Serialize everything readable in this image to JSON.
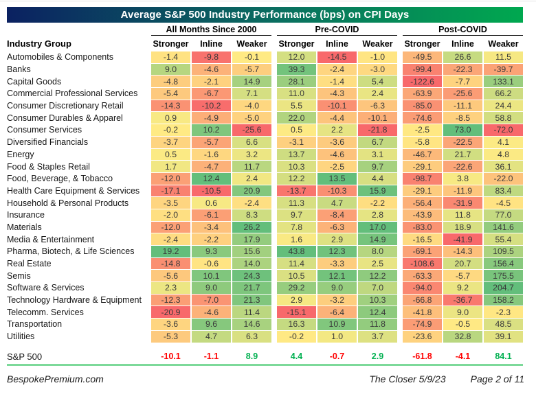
{
  "chart_data": {
    "type": "heatmap",
    "title": "Average S&P 500 Industry Performance (bps) on CPI Days",
    "row_header": "Industry Group",
    "column_groups": [
      "All Months Since 2000",
      "Pre-COVID",
      "Post-COVID"
    ],
    "columns": [
      "Stronger",
      "Inline",
      "Weaker"
    ],
    "rows": [
      {
        "label": "Automobiles & Components",
        "values": [
          -1.4,
          -9.8,
          -0.1,
          12.0,
          -14.5,
          -1.0,
          -49.5,
          26.6,
          11.5
        ]
      },
      {
        "label": "Banks",
        "values": [
          9.0,
          -4.6,
          -5.7,
          39.3,
          -2.4,
          -3.0,
          -99.4,
          -22.3,
          -39.7
        ]
      },
      {
        "label": "Capital Goods",
        "values": [
          -4.8,
          -2.1,
          14.9,
          28.1,
          -1.4,
          5.4,
          -122.6,
          -7.7,
          133.1
        ]
      },
      {
        "label": "Commercial Professional Services",
        "values": [
          -5.4,
          -6.7,
          7.1,
          11.0,
          -4.3,
          2.4,
          -63.9,
          -25.6,
          66.2
        ]
      },
      {
        "label": "Consumer Discretionary Retail",
        "values": [
          -14.3,
          -10.2,
          -4.0,
          5.5,
          -10.1,
          -6.3,
          -85.0,
          -11.1,
          24.4
        ]
      },
      {
        "label": "Consumer Durables & Apparel",
        "values": [
          0.9,
          -4.9,
          -5.0,
          22.0,
          -4.4,
          -10.1,
          -74.6,
          -8.5,
          58.8
        ]
      },
      {
        "label": "Consumer Services",
        "values": [
          -0.2,
          10.2,
          -25.6,
          0.5,
          2.2,
          -21.8,
          -2.5,
          73.0,
          -72.0
        ]
      },
      {
        "label": "Diversified Financials",
        "values": [
          -3.7,
          -5.7,
          6.6,
          -3.1,
          -3.6,
          6.7,
          -5.8,
          -22.5,
          4.1
        ]
      },
      {
        "label": "Energy",
        "values": [
          0.5,
          -1.6,
          3.2,
          13.7,
          -4.6,
          3.1,
          -46.7,
          21.7,
          4.8
        ]
      },
      {
        "label": "Food & Staples Retail",
        "values": [
          1.7,
          -4.7,
          11.7,
          10.3,
          -2.5,
          9.7,
          -29.1,
          -22.6,
          36.1
        ]
      },
      {
        "label": "Food, Beverage, & Tobacco",
        "values": [
          -12.0,
          12.4,
          2.4,
          12.2,
          13.5,
          4.4,
          -98.7,
          3.8,
          -22.0
        ]
      },
      {
        "label": "Health Care Equipment & Services",
        "values": [
          -17.1,
          -10.5,
          20.9,
          -13.7,
          -10.3,
          15.9,
          -29.1,
          -11.9,
          83.4
        ]
      },
      {
        "label": "Household & Personal Products",
        "values": [
          -3.5,
          0.6,
          -2.4,
          11.3,
          4.7,
          -2.2,
          -56.4,
          -31.9,
          -4.5
        ]
      },
      {
        "label": "Insurance",
        "values": [
          -2.0,
          -6.1,
          8.3,
          9.7,
          -8.4,
          2.8,
          -43.9,
          11.8,
          77.0
        ]
      },
      {
        "label": "Materials",
        "values": [
          -12.0,
          -3.4,
          26.2,
          7.8,
          -6.3,
          17.0,
          -83.0,
          18.9,
          141.6
        ]
      },
      {
        "label": "Media & Entertainment",
        "values": [
          -2.4,
          -2.2,
          17.9,
          1.6,
          2.9,
          14.9,
          -16.5,
          -41.9,
          55.4
        ]
      },
      {
        "label": "Pharma, Biotech, & Life Sciences",
        "values": [
          19.2,
          9.3,
          15.6,
          43.8,
          12.3,
          8.0,
          -69.1,
          -14.3,
          109.5
        ]
      },
      {
        "label": "Real Estate",
        "values": [
          -14.8,
          -0.6,
          14.0,
          11.4,
          -3.3,
          2.5,
          -108.6,
          20.7,
          156.4
        ]
      },
      {
        "label": "Semis",
        "values": [
          -5.6,
          10.1,
          24.3,
          10.5,
          12.1,
          12.2,
          -63.3,
          -5.7,
          175.5
        ]
      },
      {
        "label": "Software & Services",
        "values": [
          2.3,
          9.0,
          21.7,
          29.2,
          9.0,
          7.0,
          -94.0,
          9.2,
          204.7
        ]
      },
      {
        "label": "Technology Hardware & Equipment",
        "values": [
          -12.3,
          -7.0,
          21.3,
          2.9,
          -3.2,
          10.3,
          -66.8,
          -36.7,
          158.2
        ]
      },
      {
        "label": "Telecomm. Services",
        "values": [
          -20.9,
          -4.6,
          11.4,
          -15.1,
          -6.4,
          12.4,
          -41.8,
          9.0,
          -2.3
        ]
      },
      {
        "label": "Transportation",
        "values": [
          -3.6,
          9.6,
          14.6,
          16.3,
          10.9,
          11.8,
          -74.9,
          -0.5,
          48.5
        ]
      },
      {
        "label": "Utilities",
        "values": [
          -5.3,
          4.7,
          6.3,
          -0.2,
          1.0,
          3.7,
          -23.6,
          32.8,
          39.1
        ]
      }
    ],
    "summary_row": {
      "label": "S&P 500",
      "values": [
        -10.1,
        -1.1,
        8.9,
        4.4,
        -0.7,
        2.9,
        -61.8,
        -4.1,
        84.1
      ]
    },
    "color_scale": {
      "low": "#f8696b",
      "mid": "#ffeb84",
      "high": "#63be7b",
      "midpoint_value": 0,
      "scaling": "per-column"
    },
    "layout": {
      "grid": false,
      "legend": false
    }
  },
  "colors": {
    "scale_red": "#f8696b",
    "scale_yellow": "#ffeb84",
    "scale_green": "#63be7b",
    "negative_text": "#ff0000",
    "positive_text": "#00b050",
    "title_gradient_left": "#0b2161",
    "title_gradient_mid": "#0a6e60",
    "title_gradient_right": "#00a84f",
    "footer_rule": "#7dd99a"
  },
  "footer": {
    "brand": "BespokePremium.com",
    "report_title": "The Closer 5/9/23",
    "page_label": "Page 2 of 11"
  }
}
